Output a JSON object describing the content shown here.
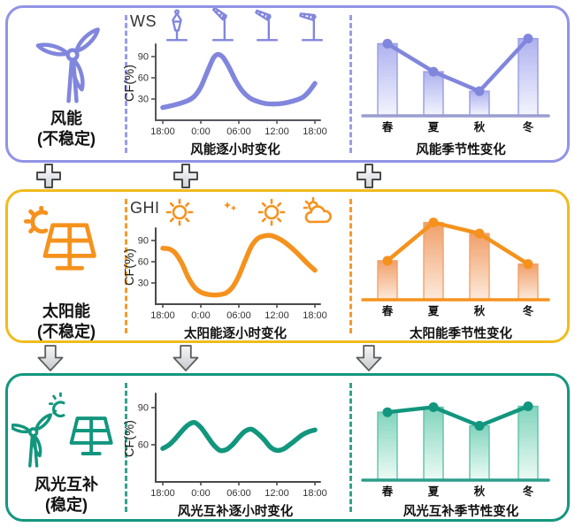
{
  "figure": {
    "description_labels_only": true
  },
  "left_panels": [
    {
      "name": "风能",
      "state": "(不稳定)",
      "icon": "wind-turbine"
    },
    {
      "name": "太阳能",
      "state": "(不稳定)",
      "icon": "solar-panel-with-sun"
    },
    {
      "name": "风光互补",
      "state": "(稳定)",
      "icon": "wind-turbine-sun-solar-panel"
    }
  ],
  "palette": {
    "wind": {
      "accent": "#8186dd",
      "border": "#9193e6",
      "divider": "#9a9ce8",
      "axis": "#55565e",
      "baseline": "#9a9dd0",
      "barTop": "#aeb2ee",
      "barBottom": "#f4f5fe",
      "barStroke": "#989ce6"
    },
    "solar": {
      "accent": "#f5921d",
      "border": "#f1bb1e",
      "divider": "#f39b2a",
      "axis": "#4a4a4a",
      "baseline": "#f5921d",
      "barTop": "#f0a06a",
      "barBottom": "#fdeadc",
      "barStroke": "#f2a26c"
    },
    "hybrid": {
      "accent": "#12967e",
      "border": "#149680",
      "divider": "#35a18c",
      "axis": "#4a4a4a",
      "baseline": "#2b9e8b",
      "barTop": "#82d4bd",
      "barBottom": "#edfbf5",
      "barStroke": "#5fc2a9"
    }
  },
  "chart_data": [
    {
      "row": "wind",
      "type": "line",
      "title": "风能逐小时变化",
      "corner_label": "WS",
      "ylabel": "CF(%)",
      "yticks": [
        30,
        60,
        90
      ],
      "ylim": [
        0,
        105
      ],
      "xticks": [
        "18:00",
        "0:00",
        "06:00",
        "12:00",
        "18:00"
      ],
      "x_axis_note_hours_from_1800": true,
      "icons": [
        "windsock-calm",
        "windsock-strong",
        "windsock-medium",
        "windsock-light"
      ],
      "points": [
        [
          0,
          18
        ],
        [
          2,
          22
        ],
        [
          4,
          28
        ],
        [
          5,
          34
        ],
        [
          6,
          47
        ],
        [
          7,
          68
        ],
        [
          8,
          88
        ],
        [
          8.7,
          93
        ],
        [
          9.5,
          89
        ],
        [
          10.5,
          74
        ],
        [
          11.5,
          56
        ],
        [
          12.5,
          42
        ],
        [
          13.5,
          33
        ],
        [
          14.5,
          28
        ],
        [
          16,
          24
        ],
        [
          17.5,
          23
        ],
        [
          19,
          24
        ],
        [
          20.5,
          27
        ],
        [
          22,
          32
        ],
        [
          23,
          40
        ],
        [
          24,
          52
        ]
      ]
    },
    {
      "row": "wind",
      "type": "bar+line",
      "title": "风能季节性变化",
      "categories": [
        "春",
        "夏",
        "秋",
        "冬"
      ],
      "values": [
        85,
        52,
        29,
        91
      ],
      "ylim": [
        0,
        100
      ]
    },
    {
      "row": "solar",
      "type": "line",
      "title": "太阳能逐小时变化",
      "corner_label": "GHI",
      "ylabel": "CF(%)",
      "yticks": [
        30,
        60,
        90
      ],
      "ylim": [
        0,
        105
      ],
      "xticks": [
        "18:00",
        "0:00",
        "06:00",
        "12:00",
        "18:00"
      ],
      "icons": [
        "sun",
        "moon-with-stars",
        "sun",
        "sun-behind-cloud"
      ],
      "points": [
        [
          0,
          79
        ],
        [
          1,
          78
        ],
        [
          2,
          72
        ],
        [
          3,
          58
        ],
        [
          4,
          38
        ],
        [
          5,
          24
        ],
        [
          6,
          17
        ],
        [
          7,
          14
        ],
        [
          8,
          13
        ],
        [
          9,
          13.5
        ],
        [
          10,
          16
        ],
        [
          11,
          24
        ],
        [
          12,
          40
        ],
        [
          13,
          62
        ],
        [
          14,
          82
        ],
        [
          15,
          93
        ],
        [
          16,
          96.5
        ],
        [
          17,
          97
        ],
        [
          18,
          94
        ],
        [
          19,
          89
        ],
        [
          20,
          82
        ],
        [
          21,
          74
        ],
        [
          22,
          65
        ],
        [
          23,
          56
        ],
        [
          24,
          48
        ]
      ]
    },
    {
      "row": "solar",
      "type": "bar+line",
      "title": "太阳能季节性变化",
      "categories": [
        "春",
        "夏",
        "秋",
        "冬"
      ],
      "values": [
        46,
        91,
        78,
        42
      ],
      "ylim": [
        0,
        100
      ]
    },
    {
      "row": "hybrid",
      "type": "line",
      "title": "风光互补逐小时变化",
      "corner_label": "",
      "ylabel": "CF(%)",
      "yticks": [
        60,
        90
      ],
      "ylim": [
        30,
        100
      ],
      "xticks": [
        "18:00",
        "0:00",
        "06:00",
        "12:00",
        "18:00"
      ],
      "points": [
        [
          0,
          57
        ],
        [
          1,
          60
        ],
        [
          2,
          65
        ],
        [
          3,
          71
        ],
        [
          4,
          76
        ],
        [
          5,
          78
        ],
        [
          6,
          74
        ],
        [
          7,
          67
        ],
        [
          8,
          60
        ],
        [
          9,
          55.5
        ],
        [
          10,
          56
        ],
        [
          11,
          60
        ],
        [
          12,
          66
        ],
        [
          13,
          71
        ],
        [
          14,
          72.5
        ],
        [
          15,
          69
        ],
        [
          16,
          64
        ],
        [
          17,
          58
        ],
        [
          18,
          55.5
        ],
        [
          19,
          56.5
        ],
        [
          20,
          60
        ],
        [
          21,
          64
        ],
        [
          22,
          68
        ],
        [
          23,
          70.5
        ],
        [
          24,
          72
        ]
      ]
    },
    {
      "row": "hybrid",
      "type": "bar+line",
      "title": "风光互补季节性变化",
      "categories": [
        "春",
        "夏",
        "秋",
        "冬"
      ],
      "values": [
        80,
        86,
        64,
        87
      ],
      "ylim": [
        0,
        100
      ]
    }
  ]
}
